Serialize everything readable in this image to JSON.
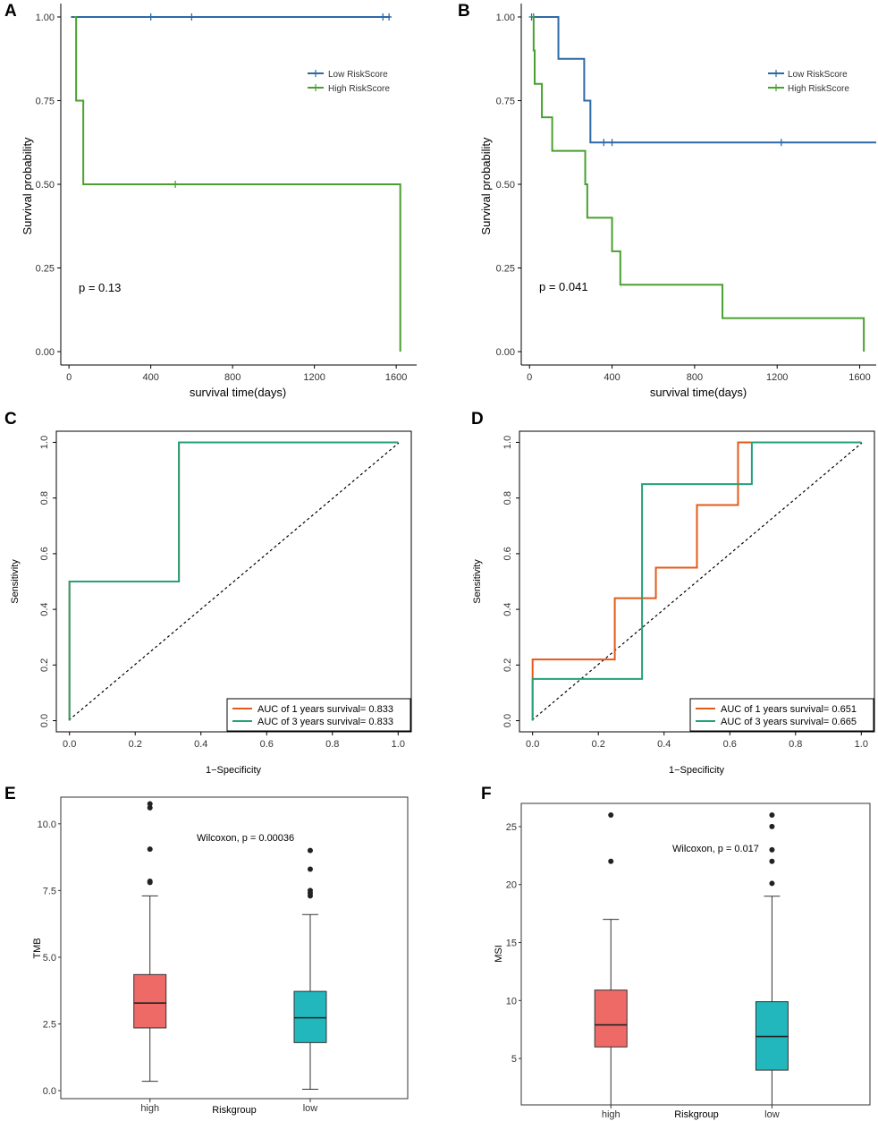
{
  "figure": {
    "colors": {
      "low_km": "#2d69a8",
      "high_km": "#49a02f",
      "roc_1yr": "#e35b19",
      "roc_3yr": "#25a07a",
      "box_high": "#ee6a67",
      "box_low": "#21b7bd"
    }
  },
  "chart_data": [
    {
      "id": "A",
      "type": "line",
      "subtype": "kaplan-meier",
      "panel_label": "A",
      "xlabel": "survival time(days)",
      "ylabel": "Survival probability",
      "xlim": [
        -40,
        1700
      ],
      "ylim": [
        -0.04,
        1.04
      ],
      "xticks": [
        0,
        400,
        800,
        1200,
        1600
      ],
      "yticks": [
        0,
        0.25,
        0.5,
        0.75,
        1.0
      ],
      "ytick_labels": [
        "0.00",
        "0.25",
        "0.50",
        "0.75",
        "1.00"
      ],
      "annotation": "p = 0.13",
      "legend": [
        "Low RiskScore",
        "High RiskScore"
      ],
      "series": [
        {
          "name": "Low RiskScore",
          "steps": [
            [
              10,
              1.0
            ],
            [
              1570,
              1.0
            ]
          ],
          "censored": [
            400,
            600,
            1535,
            1565
          ]
        },
        {
          "name": "High RiskScore",
          "steps": [
            [
              25,
              1.0
            ],
            [
              35,
              0.75
            ],
            [
              70,
              0.5
            ],
            [
              1620,
              0.0
            ]
          ],
          "censored": [
            520
          ]
        }
      ]
    },
    {
      "id": "B",
      "type": "line",
      "subtype": "kaplan-meier",
      "panel_label": "B",
      "xlabel": "survival time(days)",
      "ylabel": "Survival probability",
      "xlim": [
        -40,
        1680
      ],
      "ylim": [
        -0.04,
        1.04
      ],
      "xticks": [
        0,
        400,
        800,
        1200,
        1600
      ],
      "yticks": [
        0,
        0.25,
        0.5,
        0.75,
        1.0
      ],
      "ytick_labels": [
        "0.00",
        "0.25",
        "0.50",
        "0.75",
        "1.00"
      ],
      "annotation": "p = 0.041",
      "legend": [
        "Low RiskScore",
        "High RiskScore"
      ],
      "series": [
        {
          "name": "Low RiskScore",
          "steps": [
            [
              10,
              1.0
            ],
            [
              140,
              0.875
            ],
            [
              265,
              0.75
            ],
            [
              295,
              0.625
            ],
            [
              1680,
              0.625
            ]
          ],
          "censored": [
            10,
            20,
            360,
            400,
            1220
          ]
        },
        {
          "name": "High RiskScore",
          "steps": [
            [
              10,
              1.0
            ],
            [
              20,
              0.9
            ],
            [
              25,
              0.8
            ],
            [
              60,
              0.7
            ],
            [
              110,
              0.6
            ],
            [
              270,
              0.5
            ],
            [
              280,
              0.4
            ],
            [
              400,
              0.3
            ],
            [
              440,
              0.2
            ],
            [
              935,
              0.1
            ],
            [
              1620,
              0.0
            ]
          ],
          "censored": []
        }
      ]
    },
    {
      "id": "C",
      "type": "line",
      "subtype": "roc",
      "panel_label": "C",
      "xlabel": "1−Specificity",
      "ylabel": "Sensitivity",
      "xlim": [
        -0.04,
        1.04
      ],
      "ylim": [
        -0.04,
        1.04
      ],
      "xticks": [
        0,
        0.2,
        0.4,
        0.6,
        0.8,
        1.0
      ],
      "tick_labels": [
        "0.0",
        "0.2",
        "0.4",
        "0.6",
        "0.8",
        "1.0"
      ],
      "legend": [
        "AUC of 1 years survival= 0.833",
        "AUC of 3 years survival= 0.833"
      ],
      "series": [
        {
          "name": "AUC of 1 years survival= 0.833",
          "x": [
            0,
            0,
            0.333,
            0.333,
            1
          ],
          "y": [
            0,
            0.5,
            0.5,
            1,
            1
          ]
        },
        {
          "name": "AUC of 3 years survival= 0.833",
          "x": [
            0,
            0,
            0.333,
            0.333,
            1
          ],
          "y": [
            0,
            0.5,
            0.5,
            1,
            1
          ]
        }
      ]
    },
    {
      "id": "D",
      "type": "line",
      "subtype": "roc",
      "panel_label": "D",
      "xlabel": "1−Specificity",
      "ylabel": "Sensitivity",
      "xlim": [
        -0.04,
        1.04
      ],
      "ylim": [
        -0.04,
        1.04
      ],
      "xticks": [
        0,
        0.2,
        0.4,
        0.6,
        0.8,
        1.0
      ],
      "tick_labels": [
        "0.0",
        "0.2",
        "0.4",
        "0.6",
        "0.8",
        "1.0"
      ],
      "legend": [
        "AUC of 1 years survival= 0.651",
        "AUC of 3 years survival= 0.665"
      ],
      "series": [
        {
          "name": "AUC of 1 years survival= 0.651",
          "x": [
            0,
            0,
            0.25,
            0.25,
            0.375,
            0.375,
            0.5,
            0.5,
            0.625,
            0.625,
            1
          ],
          "y": [
            0,
            0.22,
            0.22,
            0.44,
            0.44,
            0.55,
            0.55,
            0.775,
            0.775,
            1,
            1
          ]
        },
        {
          "name": "AUC of 3 years survival= 0.665",
          "x": [
            0,
            0,
            0.333,
            0.333,
            0.667,
            0.667,
            1
          ],
          "y": [
            0,
            0.15,
            0.15,
            0.85,
            0.85,
            1,
            1
          ]
        }
      ]
    },
    {
      "id": "E",
      "type": "box",
      "panel_label": "E",
      "xlabel": "Riskgroup",
      "ylabel": "TMB",
      "ylim": [
        -0.3,
        11.0
      ],
      "yticks": [
        0,
        2.5,
        5,
        7.5,
        10
      ],
      "ytick_labels": [
        "0.0",
        "2.5",
        "5.0",
        "7.5",
        "10.0"
      ],
      "categories": [
        "high",
        "low"
      ],
      "annotation": "Wilcoxon, p = 0.00036",
      "boxes": [
        {
          "group": "high",
          "whisker_low": 0.35,
          "q1": 2.35,
          "median": 3.28,
          "q3": 4.35,
          "whisker_high": 7.3,
          "outliers": [
            7.8,
            7.85,
            9.05,
            10.6,
            10.75
          ]
        },
        {
          "group": "low",
          "whisker_low": 0.05,
          "q1": 1.8,
          "median": 2.73,
          "q3": 3.72,
          "whisker_high": 6.6,
          "outliers": [
            7.3,
            7.4,
            7.5,
            8.3,
            9.0
          ]
        }
      ]
    },
    {
      "id": "F",
      "type": "box",
      "panel_label": "F",
      "xlabel": "Riskgroup",
      "ylabel": "MSI",
      "ylim": [
        1.0,
        27.0
      ],
      "yticks": [
        5,
        10,
        15,
        20,
        25
      ],
      "ytick_labels": [
        "5",
        "10",
        "15",
        "20",
        "25"
      ],
      "categories": [
        "high",
        "low"
      ],
      "annotation": "Wilcoxon, p = 0.017",
      "boxes": [
        {
          "group": "high",
          "whisker_low": 1.0,
          "q1": 6.0,
          "median": 7.9,
          "q3": 10.9,
          "whisker_high": 17.0,
          "outliers": [
            22.0,
            26.0
          ]
        },
        {
          "group": "low",
          "whisker_low": 1.0,
          "q1": 4.0,
          "median": 6.9,
          "q3": 9.9,
          "whisker_high": 19.0,
          "outliers": [
            20.1,
            22.0,
            23.0,
            25.0,
            26.0
          ]
        }
      ]
    }
  ]
}
